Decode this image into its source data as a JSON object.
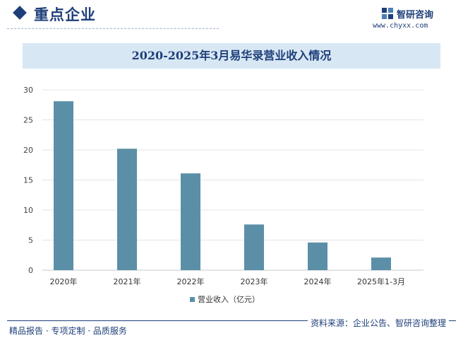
{
  "header": {
    "title": "重点企业",
    "logo_name": "智研咨询",
    "logo_url": "www.chyxx.com"
  },
  "footer": {
    "left_text": "精品报告 · 专项定制 · 品质服务",
    "source_text": "资料来源：企业公告、智研咨询整理"
  },
  "colors": {
    "accent": "#1e3f79",
    "bar": "#5b8fa8",
    "title_band": "#d8e7f4"
  },
  "chart_data": {
    "type": "bar",
    "title": "2020-2025年3月易华录营业收入情况",
    "categories": [
      "2020年",
      "2021年",
      "2022年",
      "2023年",
      "2024年",
      "2025年1-3月"
    ],
    "series": [
      {
        "name": "营业收入（亿元）",
        "values": [
          28.1,
          20.2,
          16.1,
          7.6,
          4.6,
          2.1
        ]
      }
    ],
    "yticks": [
      0,
      5,
      10,
      15,
      20,
      25,
      30
    ],
    "ylim": [
      0,
      30
    ],
    "xlabel": "",
    "ylabel": "",
    "grid": true,
    "legend_position": "bottom"
  }
}
